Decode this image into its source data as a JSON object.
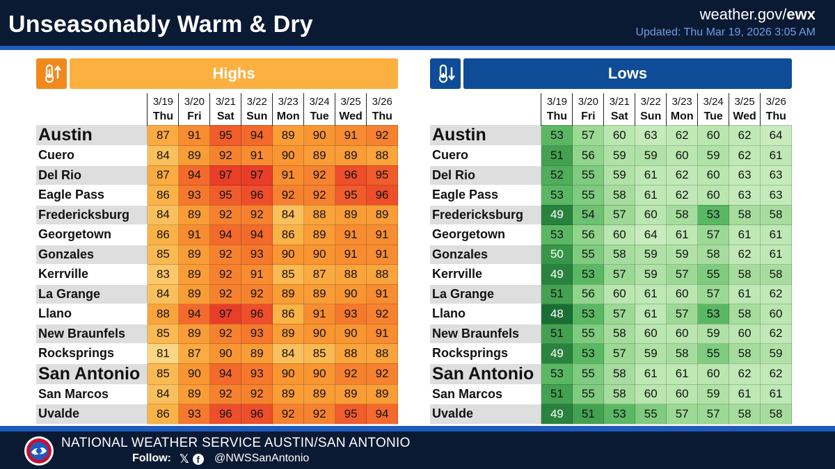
{
  "header": {
    "title": "Unseasonably Warm & Dry",
    "site_prefix": "weather.gov/",
    "site_bold": "ewx",
    "updated": "Updated: Thu Mar 19, 2026 3:05 AM"
  },
  "dates": [
    "3/19",
    "3/20",
    "3/21",
    "3/22",
    "3/23",
    "3/24",
    "3/25",
    "3/26"
  ],
  "days": [
    "Thu",
    "Fri",
    "Sat",
    "Sun",
    "Mon",
    "Tue",
    "Wed",
    "Thu"
  ],
  "cities": [
    "Austin",
    "Cuero",
    "Del Rio",
    "Eagle Pass",
    "Fredericksburg",
    "Georgetown",
    "Gonzales",
    "Kerrville",
    "La Grange",
    "Llano",
    "New Braunfels",
    "Rocksprings",
    "San Antonio",
    "San Marcos",
    "Uvalde"
  ],
  "big_cities": [
    "Austin",
    "San Antonio"
  ],
  "highs": {
    "label": "Highs",
    "icon": "thermometer-up-icon",
    "values": [
      [
        87,
        91,
        95,
        94,
        89,
        90,
        91,
        92
      ],
      [
        84,
        89,
        92,
        91,
        90,
        89,
        89,
        88
      ],
      [
        87,
        94,
        97,
        97,
        91,
        92,
        96,
        95
      ],
      [
        86,
        93,
        95,
        96,
        92,
        92,
        95,
        96
      ],
      [
        84,
        89,
        92,
        92,
        84,
        88,
        89,
        89
      ],
      [
        86,
        91,
        94,
        94,
        86,
        89,
        91,
        91
      ],
      [
        85,
        89,
        92,
        93,
        90,
        90,
        91,
        91
      ],
      [
        83,
        89,
        92,
        91,
        85,
        87,
        88,
        88
      ],
      [
        84,
        89,
        92,
        92,
        89,
        89,
        90,
        91
      ],
      [
        88,
        94,
        97,
        96,
        86,
        91,
        93,
        92
      ],
      [
        85,
        89,
        92,
        93,
        89,
        90,
        90,
        91
      ],
      [
        81,
        87,
        90,
        89,
        84,
        85,
        88,
        88
      ],
      [
        85,
        90,
        94,
        93,
        90,
        90,
        92,
        92
      ],
      [
        84,
        89,
        92,
        92,
        89,
        89,
        89,
        89
      ],
      [
        86,
        93,
        96,
        96,
        92,
        92,
        95,
        94
      ]
    ]
  },
  "lows": {
    "label": "Lows",
    "icon": "thermometer-down-icon",
    "values": [
      [
        53,
        57,
        60,
        63,
        62,
        60,
        62,
        64
      ],
      [
        51,
        56,
        59,
        59,
        60,
        59,
        62,
        61
      ],
      [
        52,
        55,
        59,
        61,
        62,
        60,
        63,
        63
      ],
      [
        53,
        55,
        58,
        61,
        62,
        60,
        63,
        63
      ],
      [
        49,
        54,
        57,
        60,
        58,
        53,
        58,
        58
      ],
      [
        53,
        56,
        60,
        64,
        61,
        57,
        61,
        61
      ],
      [
        50,
        55,
        58,
        59,
        59,
        58,
        62,
        61
      ],
      [
        49,
        53,
        57,
        59,
        57,
        55,
        58,
        58
      ],
      [
        51,
        56,
        60,
        61,
        60,
        57,
        61,
        62
      ],
      [
        48,
        53,
        57,
        61,
        57,
        53,
        58,
        60
      ],
      [
        51,
        55,
        58,
        60,
        60,
        59,
        60,
        62
      ],
      [
        49,
        53,
        57,
        59,
        58,
        55,
        58,
        59
      ],
      [
        53,
        55,
        58,
        61,
        61,
        60,
        62,
        62
      ],
      [
        51,
        55,
        58,
        60,
        60,
        59,
        61,
        61
      ],
      [
        49,
        51,
        53,
        55,
        57,
        57,
        58,
        58
      ]
    ]
  },
  "colors": {
    "header_bg": "#0b1a33",
    "accent_blue": "#1f5bbf",
    "highs_label": "#fbb040",
    "lows_label": "#0f4c97"
  },
  "footer": {
    "org": "NATIONAL WEATHER SERVICE AUSTIN/SAN ANTONIO",
    "follow": "Follow:",
    "handle": "@NWSSanAntonio",
    "icons": [
      "nws-logo-icon",
      "x-icon",
      "facebook-icon"
    ]
  }
}
